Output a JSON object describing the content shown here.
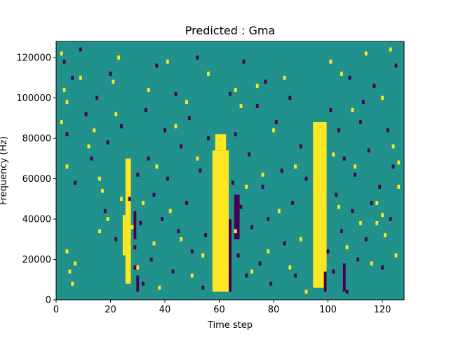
{
  "chart_data": {
    "type": "heatmap",
    "title": "Predicted : Gma",
    "xlabel": "Time step",
    "ylabel": "Frequency (Hz)",
    "xlim": [
      0,
      128
    ],
    "ylim": [
      0,
      128000
    ],
    "x_ticks": [
      0,
      20,
      40,
      60,
      80,
      100,
      120
    ],
    "x_tick_labels": [
      "0",
      "20",
      "40",
      "60",
      "80",
      "100",
      "120"
    ],
    "y_ticks": [
      0,
      20000,
      40000,
      60000,
      80000,
      100000,
      120000
    ],
    "y_tick_labels": [
      "0",
      "20000",
      "40000",
      "60000",
      "80000",
      "100000",
      "120000"
    ],
    "grid": false,
    "colormap": "viridis",
    "colors": {
      "background": "#21918c",
      "high": "#fde725",
      "low": "#440154"
    },
    "yellow_bands": [
      {
        "x0": 57.5,
        "x1": 63.5,
        "y0": 4000,
        "y1": 74000
      },
      {
        "x0": 58.5,
        "x1": 62.5,
        "y0": 74000,
        "y1": 82000
      },
      {
        "x0": 94.5,
        "x1": 99.5,
        "y0": 6000,
        "y1": 88000
      },
      {
        "x0": 25.5,
        "x1": 27.5,
        "y0": 8000,
        "y1": 70000
      },
      {
        "x0": 24.5,
        "x1": 25.5,
        "y0": 22000,
        "y1": 42000
      }
    ],
    "yellow_cells": [
      [
        2,
        122
      ],
      [
        3,
        104
      ],
      [
        4,
        98
      ],
      [
        2,
        88
      ],
      [
        4,
        66
      ],
      [
        4,
        24
      ],
      [
        5,
        14
      ],
      [
        6,
        8
      ],
      [
        7,
        18
      ],
      [
        9,
        110
      ],
      [
        12,
        76
      ],
      [
        14,
        84
      ],
      [
        16,
        60
      ],
      [
        16,
        34
      ],
      [
        17,
        54
      ],
      [
        19,
        40
      ],
      [
        21,
        108
      ],
      [
        22,
        92
      ],
      [
        23,
        120
      ],
      [
        24,
        50
      ],
      [
        26,
        62
      ],
      [
        28,
        36
      ],
      [
        30,
        16
      ],
      [
        32,
        48
      ],
      [
        34,
        104
      ],
      [
        36,
        28
      ],
      [
        37,
        66
      ],
      [
        38,
        6
      ],
      [
        41,
        118
      ],
      [
        42,
        44
      ],
      [
        44,
        86
      ],
      [
        46,
        30
      ],
      [
        48,
        98
      ],
      [
        50,
        12
      ],
      [
        52,
        70
      ],
      [
        54,
        22
      ],
      [
        56,
        112
      ],
      [
        66,
        104
      ],
      [
        66,
        34
      ],
      [
        68,
        96
      ],
      [
        70,
        56
      ],
      [
        72,
        14
      ],
      [
        74,
        106
      ],
      [
        76,
        62
      ],
      [
        78,
        24
      ],
      [
        80,
        84
      ],
      [
        82,
        44
      ],
      [
        84,
        110
      ],
      [
        86,
        16
      ],
      [
        88,
        66
      ],
      [
        90,
        30
      ],
      [
        92,
        4
      ],
      [
        101,
        118
      ],
      [
        102,
        72
      ],
      [
        104,
        46
      ],
      [
        105,
        112
      ],
      [
        107,
        26
      ],
      [
        109,
        94
      ],
      [
        110,
        66
      ],
      [
        112,
        38
      ],
      [
        114,
        122
      ],
      [
        116,
        18
      ],
      [
        118,
        48
      ],
      [
        120,
        100
      ],
      [
        121,
        32
      ],
      [
        123,
        124
      ],
      [
        124,
        76
      ],
      [
        125,
        22
      ],
      [
        126,
        68
      ],
      [
        126,
        56
      ],
      [
        118,
        38
      ],
      [
        120,
        42
      ]
    ],
    "purple_cells": [
      [
        3,
        118
      ],
      [
        4,
        82
      ],
      [
        6,
        110
      ],
      [
        7,
        58
      ],
      [
        9,
        124
      ],
      [
        11,
        92
      ],
      [
        13,
        70
      ],
      [
        15,
        100
      ],
      [
        18,
        44
      ],
      [
        19,
        78
      ],
      [
        20,
        112
      ],
      [
        22,
        30
      ],
      [
        24,
        86
      ],
      [
        27,
        50
      ],
      [
        29,
        16
      ],
      [
        29,
        26
      ],
      [
        30,
        62
      ],
      [
        31,
        38
      ],
      [
        32,
        8
      ],
      [
        33,
        94
      ],
      [
        34,
        70
      ],
      [
        35,
        20
      ],
      [
        36,
        52
      ],
      [
        37,
        116
      ],
      [
        39,
        40
      ],
      [
        40,
        84
      ],
      [
        41,
        60
      ],
      [
        43,
        14
      ],
      [
        44,
        102
      ],
      [
        45,
        34
      ],
      [
        46,
        76
      ],
      [
        48,
        48
      ],
      [
        49,
        90
      ],
      [
        50,
        24
      ],
      [
        52,
        120
      ],
      [
        53,
        64
      ],
      [
        54,
        6
      ],
      [
        55,
        32
      ],
      [
        56,
        80
      ],
      [
        64,
        102
      ],
      [
        65,
        58
      ],
      [
        66,
        82
      ],
      [
        67,
        22
      ],
      [
        68,
        46
      ],
      [
        69,
        118
      ],
      [
        70,
        12
      ],
      [
        71,
        72
      ],
      [
        72,
        36
      ],
      [
        74,
        96
      ],
      [
        75,
        18
      ],
      [
        76,
        56
      ],
      [
        77,
        108
      ],
      [
        78,
        40
      ],
      [
        79,
        8
      ],
      [
        81,
        88
      ],
      [
        83,
        64
      ],
      [
        84,
        28
      ],
      [
        86,
        100
      ],
      [
        87,
        48
      ],
      [
        88,
        12
      ],
      [
        90,
        76
      ],
      [
        92,
        60
      ],
      [
        100,
        24
      ],
      [
        101,
        94
      ],
      [
        102,
        14
      ],
      [
        103,
        52
      ],
      [
        104,
        84
      ],
      [
        105,
        34
      ],
      [
        106,
        70
      ],
      [
        107,
        4
      ],
      [
        108,
        110
      ],
      [
        109,
        44
      ],
      [
        110,
        62
      ],
      [
        111,
        20
      ],
      [
        112,
        88
      ],
      [
        113,
        98
      ],
      [
        114,
        30
      ],
      [
        115,
        74
      ],
      [
        116,
        48
      ],
      [
        117,
        106
      ],
      [
        119,
        56
      ],
      [
        120,
        16
      ],
      [
        122,
        84
      ],
      [
        123,
        40
      ],
      [
        124,
        66
      ],
      [
        125,
        116
      ]
    ],
    "purple_bands": [
      {
        "x0": 63.5,
        "x1": 64.5,
        "y0": 4000,
        "y1": 40000
      },
      {
        "x0": 65.5,
        "x1": 67.5,
        "y0": 30000,
        "y1": 52000
      },
      {
        "x0": 98.5,
        "x1": 99.5,
        "y0": 4000,
        "y1": 14000
      },
      {
        "x0": 105.5,
        "x1": 106.5,
        "y0": 4000,
        "y1": 18000
      },
      {
        "x0": 29.5,
        "x1": 30.5,
        "y0": 4000,
        "y1": 12000
      },
      {
        "x0": 28.5,
        "x1": 29.5,
        "y0": 30000,
        "y1": 44000
      }
    ]
  }
}
